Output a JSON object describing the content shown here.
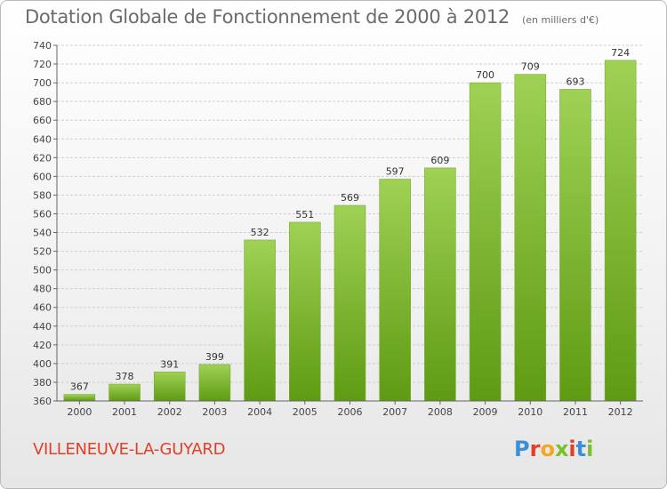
{
  "header": {
    "title": "Dotation Globale de Fonctionnement de 2000 à 2012",
    "subtitle": "(en milliers d'€)"
  },
  "footer": {
    "commune": "VILLENEUVE-LA-GUYARD",
    "logo": "Proxiti"
  },
  "colors": {
    "bar_top": "#9fd155",
    "bar_bottom": "#5e9b12",
    "commune_text": "#e0402a",
    "logo_letters": [
      "#3b8fd6",
      "#e0402a",
      "#f5a623",
      "#7bbf2a",
      "#e0402a",
      "#3b8fd6",
      "#7bbf2a"
    ]
  },
  "chart_data": {
    "type": "bar",
    "title": "Dotation Globale de Fonctionnement de 2000 à 2012",
    "subtitle": "(en milliers d'€)",
    "xlabel": "",
    "ylabel": "",
    "categories": [
      "2000",
      "2001",
      "2002",
      "2003",
      "2004",
      "2005",
      "2006",
      "2007",
      "2008",
      "2009",
      "2010",
      "2011",
      "2012"
    ],
    "values": [
      367,
      378,
      391,
      399,
      532,
      551,
      569,
      597,
      609,
      700,
      709,
      693,
      724
    ],
    "ylim": [
      360,
      740
    ],
    "yticks": [
      360,
      380,
      400,
      420,
      440,
      460,
      480,
      500,
      520,
      540,
      560,
      580,
      600,
      620,
      640,
      660,
      680,
      700,
      720,
      740
    ],
    "grid": true,
    "legend": "none"
  }
}
